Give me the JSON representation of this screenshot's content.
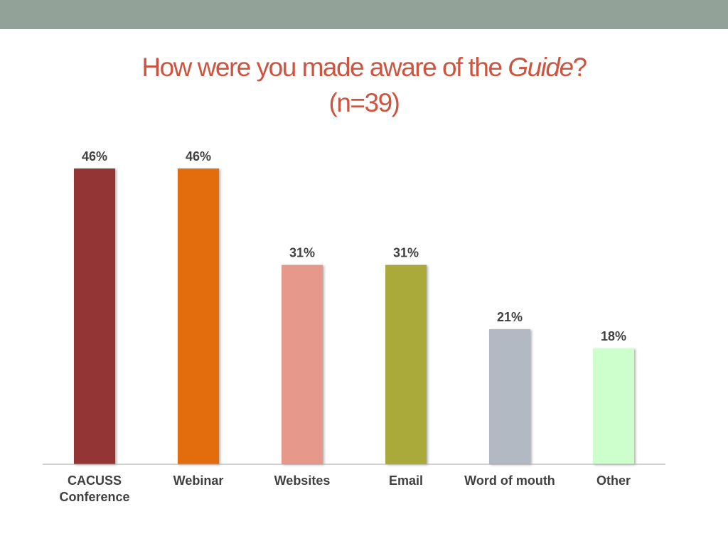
{
  "header": {
    "title_before": "How were you made aware of the ",
    "title_emph": "Guide",
    "title_after": "?",
    "subtitle": "(n=39)"
  },
  "colors": {
    "top_band": "#93a299",
    "title": "#cf543f",
    "axis": "#a6a6a6"
  },
  "chart_data": {
    "type": "bar",
    "title": "How were you made aware of the Guide? (n=39)",
    "categories": [
      [
        "CACUSS",
        "Conference"
      ],
      [
        "Webinar"
      ],
      [
        "Websites"
      ],
      [
        "Email"
      ],
      [
        "Word of mouth"
      ],
      [
        "Other"
      ]
    ],
    "values": [
      46,
      46,
      31,
      31,
      21,
      18
    ],
    "value_labels": [
      "46%",
      "46%",
      "31%",
      "31%",
      "21%",
      "18%"
    ],
    "colors": [
      "#943634",
      "#e36c0a",
      "#e6988a",
      "#aaaa3a",
      "#b2b9c3",
      "#ccffcc"
    ],
    "unit": "%",
    "xlabel": "",
    "ylabel": "",
    "ylim": [
      0,
      46
    ],
    "grid": false,
    "legend": "none"
  }
}
